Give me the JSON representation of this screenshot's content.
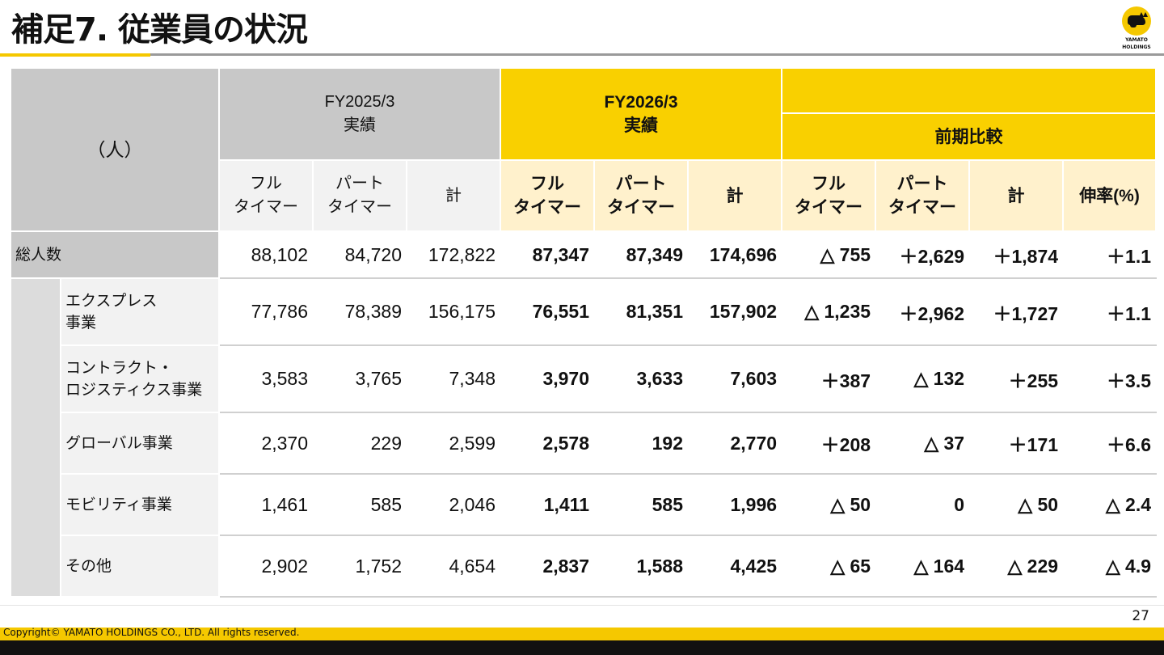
{
  "header": {
    "title": "補足7. 従業員の状況",
    "logo_text_line1": "YAMATO",
    "logo_text_line2": "HOLDINGS"
  },
  "table": {
    "unit": "（人）",
    "period_prev": "FY2025/3",
    "period_prev_sub": "実績",
    "period_curr": "FY2026/3",
    "period_curr_sub": "実績",
    "comparison": "前期比較",
    "col_full_1": "フル",
    "col_full_2": "タイマー",
    "col_part_1": "パート",
    "col_part_2": "タイマー",
    "col_total": "計",
    "col_growth": "伸率(%)",
    "rows": [
      {
        "label": "総人数",
        "prev": [
          "88,102",
          "84,720",
          "172,822"
        ],
        "curr": [
          "87,347",
          "87,349",
          "174,696"
        ],
        "diff": [
          "△ 755",
          "＋2,629",
          "＋1,874",
          "＋1.1"
        ]
      },
      {
        "label1": "エクスプレス",
        "label2": "事業",
        "prev": [
          "77,786",
          "78,389",
          "156,175"
        ],
        "curr": [
          "76,551",
          "81,351",
          "157,902"
        ],
        "diff": [
          "△ 1,235",
          "＋2,962",
          "＋1,727",
          "＋1.1"
        ]
      },
      {
        "label1": "コントラクト・",
        "label2": "ロジスティクス事業",
        "prev": [
          "3,583",
          "3,765",
          "7,348"
        ],
        "curr": [
          "3,970",
          "3,633",
          "7,603"
        ],
        "diff": [
          "＋387",
          "△ 132",
          "＋255",
          "＋3.5"
        ]
      },
      {
        "label": "グローバル事業",
        "prev": [
          "2,370",
          "229",
          "2,599"
        ],
        "curr": [
          "2,578",
          "192",
          "2,770"
        ],
        "diff": [
          "＋208",
          "△ 37",
          "＋171",
          "＋6.6"
        ]
      },
      {
        "label": "モビリティ事業",
        "prev": [
          "1,461",
          "585",
          "2,046"
        ],
        "curr": [
          "1,411",
          "585",
          "1,996"
        ],
        "diff": [
          "△ 50",
          "0",
          "△ 50",
          "△ 2.4"
        ]
      },
      {
        "label": "その他",
        "prev": [
          "2,902",
          "1,752",
          "4,654"
        ],
        "curr": [
          "2,837",
          "1,588",
          "4,425"
        ],
        "diff": [
          "△ 65",
          "△ 164",
          "△ 229",
          "△ 4.9"
        ]
      }
    ]
  },
  "footer": {
    "page_number": "27",
    "copyright": "Copyright© YAMATO HOLDINGS CO., LTD. All rights reserved."
  },
  "colors": {
    "brand_yellow": "#f9d000",
    "cream": "#fff1cc",
    "header_grey": "#c8c8c8",
    "light_grey": "#f2f2f2"
  }
}
